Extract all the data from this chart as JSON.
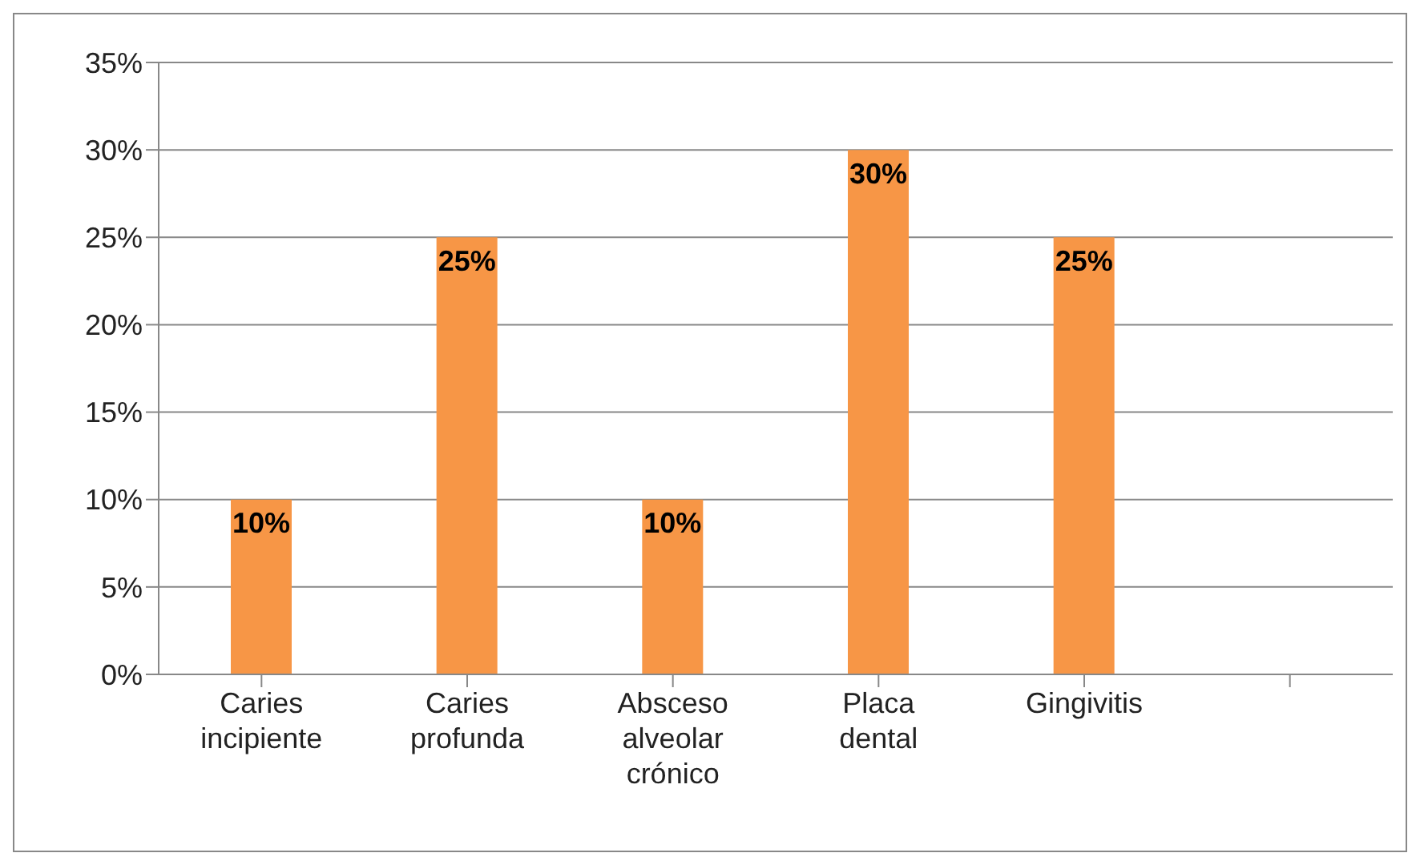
{
  "chart_data": {
    "type": "bar",
    "categories": [
      "Caries incipiente",
      "Caries profunda",
      "Absceso alveolar crónico",
      "Placa dental",
      "Gingivitis",
      null
    ],
    "values": [
      10,
      25,
      10,
      30,
      25,
      null
    ],
    "value_labels": [
      "10%",
      "25%",
      "10%",
      "30%",
      "25%",
      null
    ],
    "color": "#f79646",
    "ylim": [
      0,
      35
    ],
    "yticks": [
      {
        "value": 0,
        "label": "0%"
      },
      {
        "value": 5,
        "label": "5%"
      },
      {
        "value": 10,
        "label": "10%"
      },
      {
        "value": 15,
        "label": "15%"
      },
      {
        "value": 20,
        "label": "20%"
      },
      {
        "value": 25,
        "label": "25%"
      },
      {
        "value": 30,
        "label": "30%"
      },
      {
        "value": 35,
        "label": "35%"
      }
    ],
    "grid": "y"
  }
}
